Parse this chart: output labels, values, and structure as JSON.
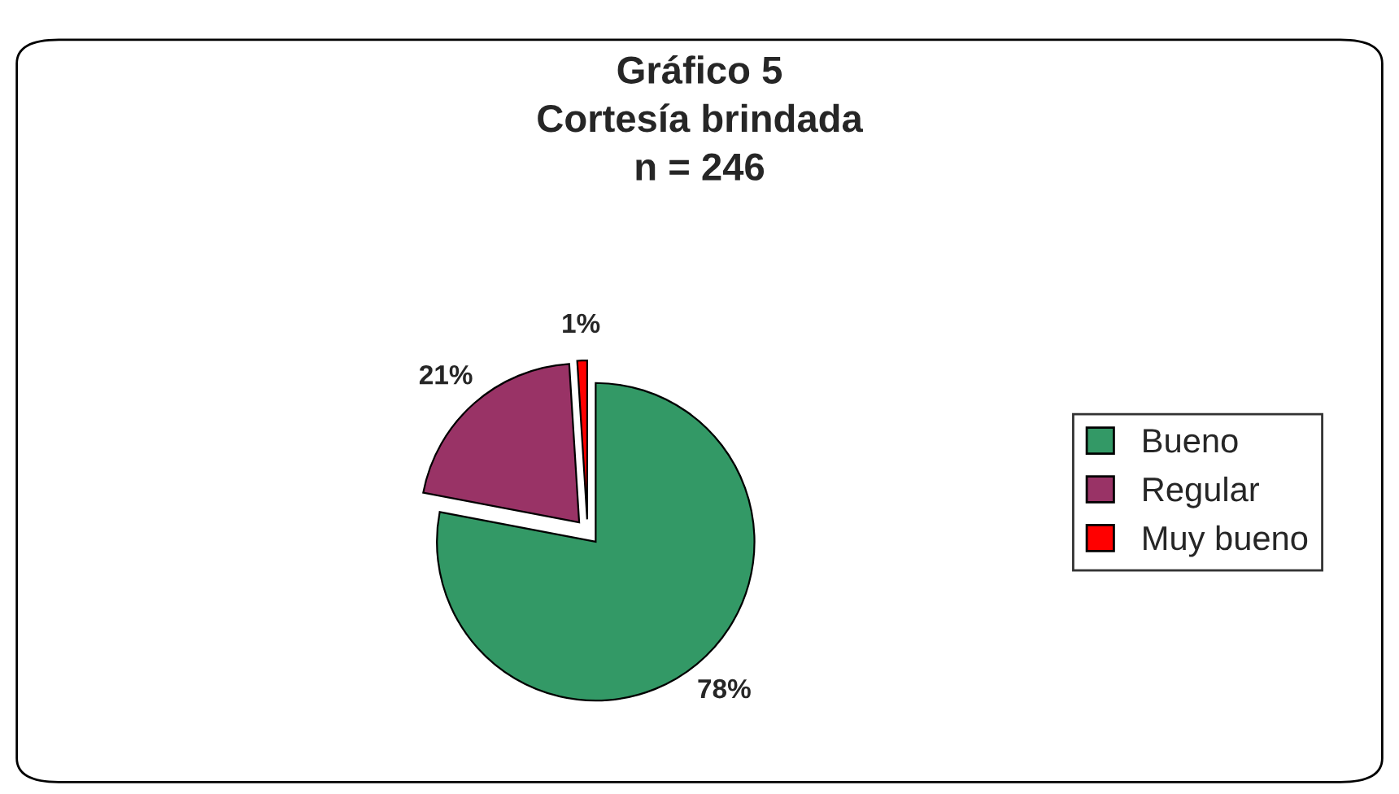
{
  "chart_data": {
    "type": "pie",
    "title": "Gráfico 5\nCortesía brindada\nn = 246",
    "categories": [
      "Bueno",
      "Regular",
      "Muy bueno"
    ],
    "values": [
      78,
      21,
      1
    ],
    "colors": [
      "#339966",
      "#993366",
      "#ff0000"
    ],
    "value_labels": [
      "78%",
      "21%",
      "1%"
    ],
    "legend": "right"
  }
}
